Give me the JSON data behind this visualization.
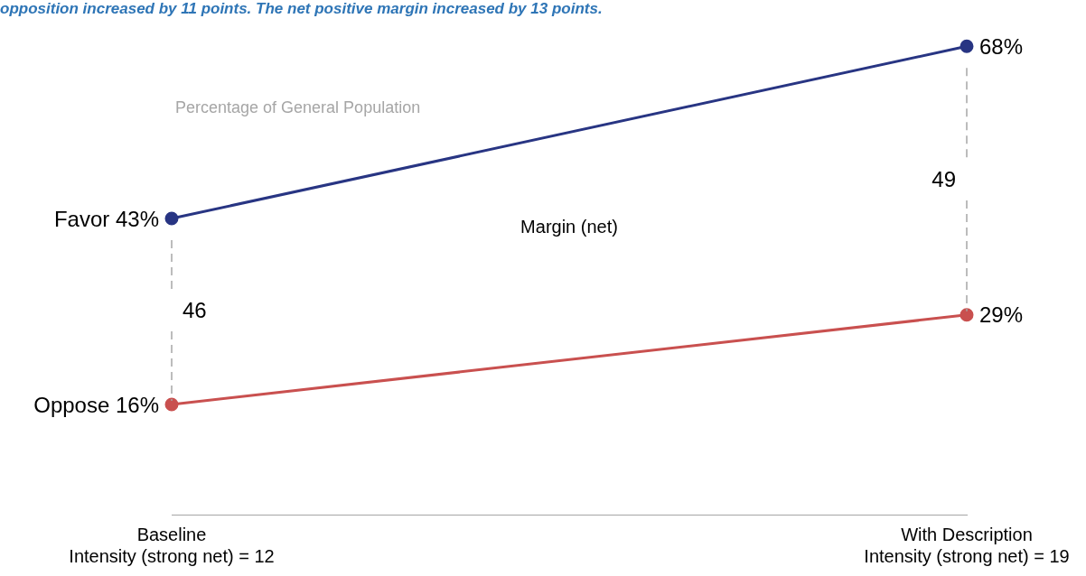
{
  "chart_data": {
    "type": "line",
    "subtitle": "opposition increased by 11 points. The net positive margin increased by 13 points.",
    "categories": [
      "Baseline\nIntensity (strong net) = 12",
      "With Description\nIntensity (strong net) = 19"
    ],
    "series": [
      {
        "name": "Favor",
        "color": "#283583",
        "values": [
          43,
          68
        ],
        "value_labels": [
          "43%",
          "68%"
        ]
      },
      {
        "name": "Oppose",
        "color": "#c9504f",
        "values": [
          16,
          29
        ],
        "value_labels": [
          "16%",
          "29%"
        ]
      }
    ],
    "marker": "circle",
    "line_style": "solid",
    "grid": false,
    "legend": false,
    "tick_labels": "x",
    "annotations": [
      "Percentage of General Population",
      "Margin (net)",
      "46",
      "49"
    ]
  }
}
